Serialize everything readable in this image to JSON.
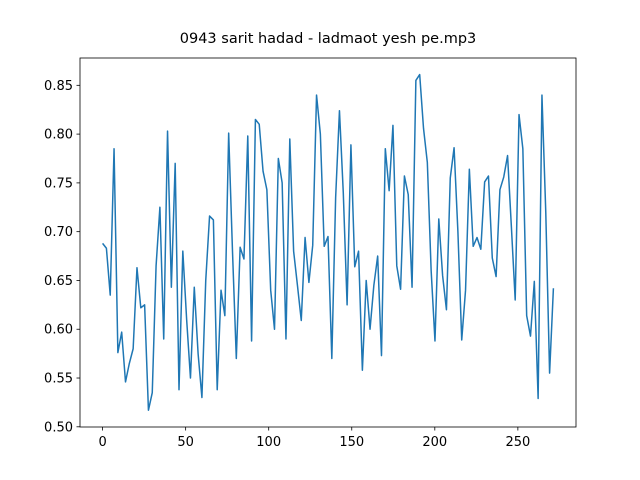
{
  "chart_data": {
    "type": "line",
    "title": "0943 sarit hadad - ladmaot yesh pe.mp3",
    "x": [
      0,
      2.3,
      4.6,
      6.9,
      9.2,
      11.5,
      13.8,
      16.1,
      18.4,
      20.7,
      23,
      25.3,
      27.6,
      29.9,
      32.2,
      34.5,
      36.8,
      39.1,
      41.4,
      43.7,
      46,
      48.3,
      50.6,
      52.9,
      55.2,
      57.5,
      59.8,
      62.1,
      64.4,
      66.7,
      69,
      71.3,
      73.6,
      75.9,
      78.2,
      80.5,
      82.8,
      85.1,
      87.4,
      89.7,
      92,
      94.3,
      96.6,
      98.9,
      101.2,
      103.5,
      105.8,
      108.1,
      110.4,
      112.7,
      115,
      117.3,
      119.6,
      121.9,
      124.2,
      126.5,
      128.8,
      131.1,
      133.4,
      135.7,
      138,
      140.3,
      142.6,
      144.9,
      147.2,
      149.5,
      151.8,
      154.1,
      156.4,
      158.7,
      161,
      163.3,
      165.6,
      167.9,
      170.2,
      172.5,
      174.8,
      177.1,
      179.4,
      181.7,
      184,
      186.3,
      188.6,
      190.9,
      193.2,
      195.5,
      197.8,
      200.1,
      202.4,
      204.7,
      207,
      209.3,
      211.6,
      213.9,
      216.2,
      218.5,
      220.8,
      223.1,
      225.4,
      227.7,
      230,
      232.3,
      234.6,
      236.9,
      239.2,
      241.5,
      243.8,
      246.1,
      248.4,
      250.7,
      253,
      255.3,
      257.6,
      259.9,
      262.2,
      264.5,
      266.8,
      269.1,
      271.4
    ],
    "series": [
      {
        "color": "#1f77b4",
        "values": [
          0.688,
          0.683,
          0.635,
          0.785,
          0.576,
          0.597,
          0.546,
          0.565,
          0.58,
          0.663,
          0.622,
          0.625,
          0.517,
          0.535,
          0.665,
          0.725,
          0.59,
          0.803,
          0.643,
          0.77,
          0.538,
          0.68,
          0.61,
          0.55,
          0.643,
          0.575,
          0.53,
          0.65,
          0.716,
          0.712,
          0.538,
          0.64,
          0.614,
          0.801,
          0.68,
          0.57,
          0.684,
          0.672,
          0.798,
          0.588,
          0.815,
          0.81,
          0.762,
          0.743,
          0.64,
          0.6,
          0.775,
          0.75,
          0.59,
          0.795,
          0.68,
          0.645,
          0.609,
          0.694,
          0.648,
          0.686,
          0.84,
          0.8,
          0.685,
          0.695,
          0.57,
          0.735,
          0.824,
          0.74,
          0.625,
          0.789,
          0.664,
          0.68,
          0.558,
          0.65,
          0.6,
          0.645,
          0.675,
          0.573,
          0.785,
          0.742,
          0.809,
          0.665,
          0.641,
          0.757,
          0.738,
          0.643,
          0.855,
          0.861,
          0.806,
          0.771,
          0.66,
          0.588,
          0.713,
          0.655,
          0.62,
          0.755,
          0.786,
          0.7,
          0.589,
          0.64,
          0.764,
          0.685,
          0.694,
          0.682,
          0.751,
          0.757,
          0.673,
          0.654,
          0.743,
          0.756,
          0.778,
          0.705,
          0.63,
          0.82,
          0.785,
          0.614,
          0.593,
          0.649,
          0.529,
          0.84,
          0.72,
          0.555,
          0.642
        ]
      }
    ],
    "xlim": [
      -13.6,
      285
    ],
    "xticks": [
      0,
      50,
      100,
      150,
      200,
      250
    ],
    "ylim": [
      0.4998,
      0.878
    ],
    "yticks": [
      {
        "value": 0.5,
        "label": "0.50"
      },
      0.55,
      {
        "value": 0.6,
        "label": "0.60"
      },
      0.65,
      {
        "value": 0.7,
        "label": "0.70"
      },
      0.75,
      {
        "value": 0.8,
        "label": "0.80"
      },
      0.85
    ]
  }
}
